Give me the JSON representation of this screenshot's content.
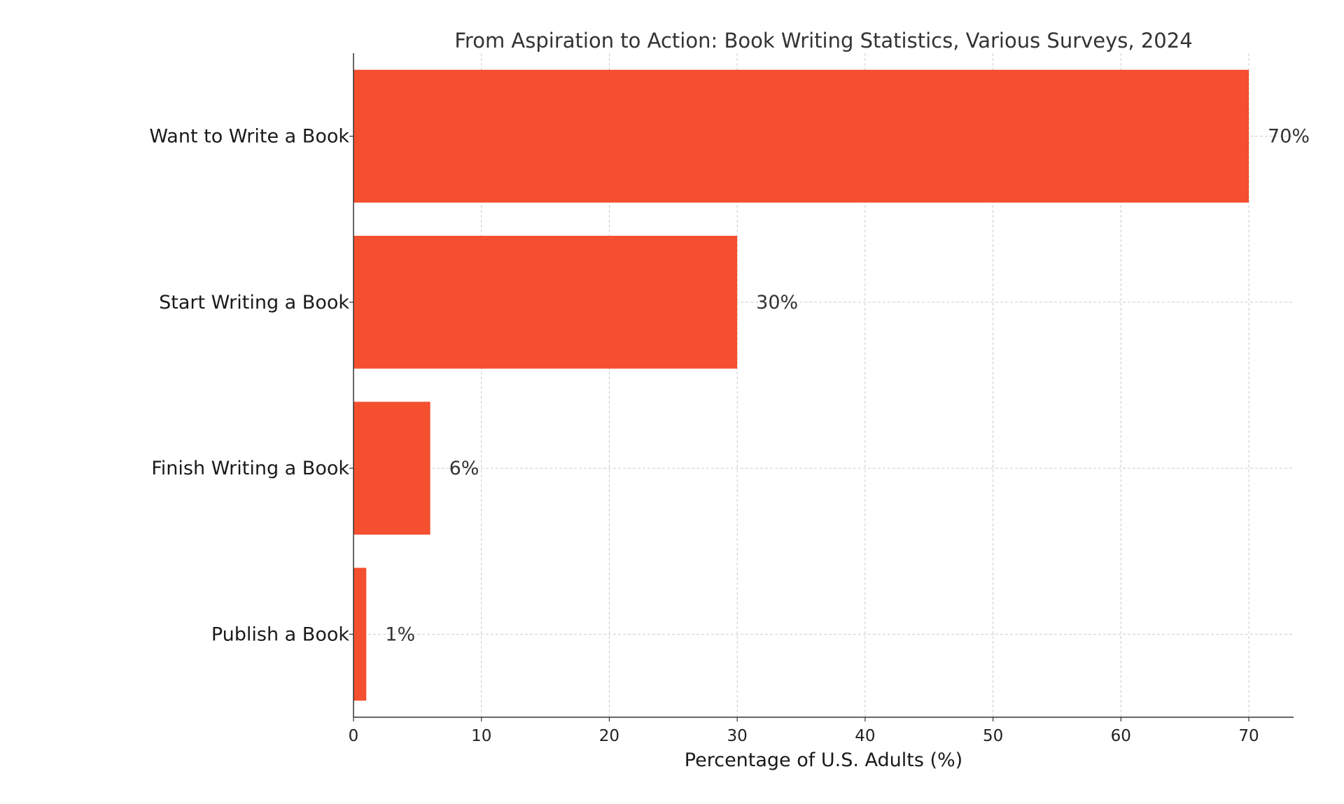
{
  "chart_data": {
    "type": "bar",
    "orientation": "horizontal",
    "title": "From Aspiration to Action: Book Writing Statistics, Various Surveys, 2024",
    "xlabel": "Percentage of U.S. Adults (%)",
    "ylabel": "",
    "categories": [
      "Want to Write a Book",
      "Start Writing a Book",
      "Finish Writing a Book",
      "Publish a Book"
    ],
    "values": [
      70,
      30,
      6,
      1
    ],
    "data_labels": [
      "70%",
      "30%",
      "6%",
      "1%"
    ],
    "xlim": [
      0,
      73.5
    ],
    "xticks": [
      0,
      10,
      20,
      30,
      40,
      50,
      60,
      70
    ],
    "xtick_labels": [
      "0",
      "10",
      "20",
      "30",
      "40",
      "50",
      "60",
      "70"
    ],
    "grid": true,
    "colors": {
      "bar": "#f44f2f",
      "grid": "#cccccc",
      "axis": "#333333"
    }
  }
}
